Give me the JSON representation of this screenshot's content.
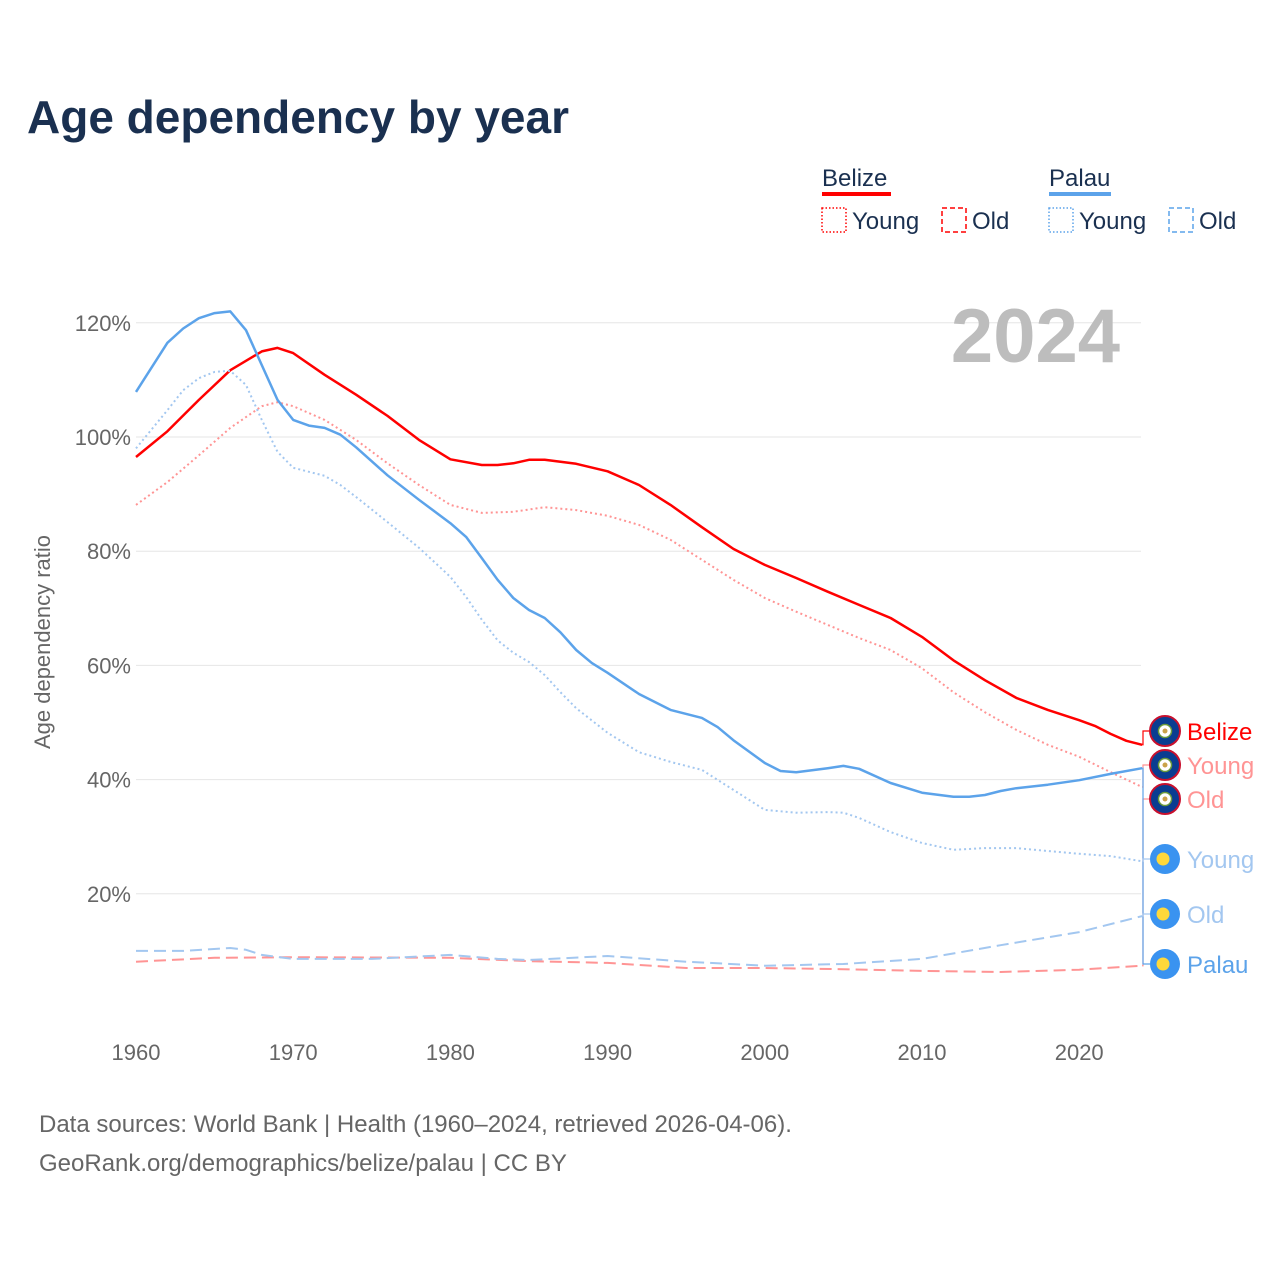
{
  "chart_data": {
    "type": "line",
    "title": "Age dependency by year",
    "ylabel": "Age dependency ratio",
    "xlabel": "",
    "year_display": "2024",
    "xlim": [
      1960,
      2024
    ],
    "ylim": [
      0,
      125
    ],
    "x_ticks": [
      "1960",
      "1970",
      "1980",
      "1990",
      "2000",
      "2010",
      "2020"
    ],
    "y_ticks": [
      "20%",
      "40%",
      "60%",
      "80%",
      "100%",
      "120%"
    ],
    "legend": {
      "groups": [
        {
          "name": "Belize",
          "color": "#ff0000",
          "items": [
            "Young",
            "Old"
          ]
        },
        {
          "name": "Palau",
          "color": "#5ca3ea",
          "items": [
            "Young",
            "Old"
          ]
        }
      ]
    },
    "series": [
      {
        "country": "Belize",
        "name": "Total",
        "label": "Belize",
        "color": "#ff0000",
        "style": "solid",
        "points": [
          [
            1960,
            96.5
          ],
          [
            1962,
            101
          ],
          [
            1964,
            106.5
          ],
          [
            1966,
            111.7
          ],
          [
            1968,
            115
          ],
          [
            1969,
            115.6
          ],
          [
            1970,
            114.7
          ],
          [
            1972,
            110.9
          ],
          [
            1974,
            107.4
          ],
          [
            1976,
            103.7
          ],
          [
            1978,
            99.5
          ],
          [
            1980,
            96.1
          ],
          [
            1982,
            95.1
          ],
          [
            1983,
            95.1
          ],
          [
            1984,
            95.4
          ],
          [
            1985,
            96
          ],
          [
            1986,
            96
          ],
          [
            1988,
            95.3
          ],
          [
            1990,
            94
          ],
          [
            1992,
            91.6
          ],
          [
            1994,
            88.1
          ],
          [
            1996,
            84.2
          ],
          [
            1998,
            80.4
          ],
          [
            2000,
            77.6
          ],
          [
            2002,
            75.3
          ],
          [
            2004,
            72.9
          ],
          [
            2006,
            70.6
          ],
          [
            2008,
            68.3
          ],
          [
            2010,
            65
          ],
          [
            2012,
            60.9
          ],
          [
            2014,
            57.4
          ],
          [
            2016,
            54.3
          ],
          [
            2018,
            52.2
          ],
          [
            2020,
            50.4
          ],
          [
            2021,
            49.4
          ],
          [
            2022,
            48
          ],
          [
            2023,
            46.8
          ],
          [
            2024,
            46.1
          ]
        ]
      },
      {
        "country": "Belize",
        "name": "Young",
        "label": "Young",
        "color": "#ff9494",
        "style": "dotted",
        "points": [
          [
            1960,
            88.1
          ],
          [
            1962,
            92.1
          ],
          [
            1964,
            96.8
          ],
          [
            1966,
            101.6
          ],
          [
            1968,
            105.4
          ],
          [
            1969,
            106.1
          ],
          [
            1970,
            105.4
          ],
          [
            1972,
            103
          ],
          [
            1974,
            99.5
          ],
          [
            1976,
            95.4
          ],
          [
            1978,
            91.6
          ],
          [
            1980,
            88.1
          ],
          [
            1982,
            86.7
          ],
          [
            1984,
            86.9
          ],
          [
            1986,
            87.7
          ],
          [
            1988,
            87.2
          ],
          [
            1990,
            86.2
          ],
          [
            1992,
            84.6
          ],
          [
            1994,
            82
          ],
          [
            1996,
            78.5
          ],
          [
            1998,
            75
          ],
          [
            2000,
            71.8
          ],
          [
            2002,
            69.4
          ],
          [
            2004,
            67.1
          ],
          [
            2006,
            64.8
          ],
          [
            2008,
            62.7
          ],
          [
            2010,
            59.5
          ],
          [
            2012,
            55.3
          ],
          [
            2014,
            51.8
          ],
          [
            2016,
            48.7
          ],
          [
            2018,
            46.1
          ],
          [
            2020,
            44
          ],
          [
            2022,
            41.3
          ],
          [
            2024,
            38.7
          ]
        ]
      },
      {
        "country": "Belize",
        "name": "Old",
        "label": "Old",
        "color": "#ff9494",
        "style": "dashed",
        "points": [
          [
            1960,
            8.1
          ],
          [
            1965,
            8.8
          ],
          [
            1970,
            8.9
          ],
          [
            1980,
            8.8
          ],
          [
            1985,
            8.2
          ],
          [
            1990,
            7.9
          ],
          [
            1995,
            7.0
          ],
          [
            2000,
            7.0
          ],
          [
            2005,
            6.8
          ],
          [
            2010,
            6.5
          ],
          [
            2015,
            6.3
          ],
          [
            2020,
            6.7
          ],
          [
            2024,
            7.4
          ]
        ]
      },
      {
        "country": "Palau",
        "name": "Total",
        "label": "Palau",
        "color": "#5ca3ea",
        "style": "solid",
        "points": [
          [
            1960,
            107.9
          ],
          [
            1962,
            116.5
          ],
          [
            1963,
            119
          ],
          [
            1964,
            120.8
          ],
          [
            1965,
            121.7
          ],
          [
            1966,
            122
          ],
          [
            1967,
            118.7
          ],
          [
            1968,
            112.6
          ],
          [
            1969,
            106.5
          ],
          [
            1970,
            103
          ],
          [
            1971,
            102
          ],
          [
            1972,
            101.6
          ],
          [
            1973,
            100.4
          ],
          [
            1974,
            98.2
          ],
          [
            1976,
            93.3
          ],
          [
            1978,
            89
          ],
          [
            1980,
            84.9
          ],
          [
            1981,
            82.5
          ],
          [
            1982,
            78.8
          ],
          [
            1983,
            75
          ],
          [
            1984,
            71.8
          ],
          [
            1985,
            69.7
          ],
          [
            1986,
            68.3
          ],
          [
            1987,
            65.8
          ],
          [
            1988,
            62.7
          ],
          [
            1989,
            60.4
          ],
          [
            1990,
            58.7
          ],
          [
            1992,
            55
          ],
          [
            1994,
            52.2
          ],
          [
            1996,
            50.8
          ],
          [
            1997,
            49.2
          ],
          [
            1998,
            46.9
          ],
          [
            2000,
            42.9
          ],
          [
            2001,
            41.5
          ],
          [
            2002,
            41.3
          ],
          [
            2004,
            42
          ],
          [
            2005,
            42.4
          ],
          [
            2006,
            41.9
          ],
          [
            2008,
            39.4
          ],
          [
            2010,
            37.7
          ],
          [
            2012,
            37
          ],
          [
            2013,
            37
          ],
          [
            2014,
            37.3
          ],
          [
            2015,
            38
          ],
          [
            2016,
            38.5
          ],
          [
            2018,
            39.1
          ],
          [
            2020,
            39.9
          ],
          [
            2022,
            41
          ],
          [
            2024,
            42
          ]
        ]
      },
      {
        "country": "Palau",
        "name": "Young",
        "label": "Young",
        "color": "#a3c7f0",
        "style": "dotted",
        "points": [
          [
            1960,
            98
          ],
          [
            1962,
            104.7
          ],
          [
            1963,
            108.2
          ],
          [
            1964,
            110.3
          ],
          [
            1965,
            111.4
          ],
          [
            1966,
            111.6
          ],
          [
            1967,
            109.1
          ],
          [
            1968,
            103
          ],
          [
            1969,
            97.4
          ],
          [
            1970,
            94.6
          ],
          [
            1972,
            93.2
          ],
          [
            1973,
            91.6
          ],
          [
            1974,
            89.5
          ],
          [
            1976,
            85.1
          ],
          [
            1978,
            80.6
          ],
          [
            1980,
            75.5
          ],
          [
            1981,
            72
          ],
          [
            1982,
            68
          ],
          [
            1983,
            64.4
          ],
          [
            1984,
            62.2
          ],
          [
            1985,
            60.6
          ],
          [
            1986,
            58.3
          ],
          [
            1987,
            55.3
          ],
          [
            1988,
            52.5
          ],
          [
            1990,
            48.2
          ],
          [
            1992,
            44.8
          ],
          [
            1994,
            43.1
          ],
          [
            1996,
            41.7
          ],
          [
            1998,
            38.2
          ],
          [
            2000,
            34.7
          ],
          [
            2002,
            34.2
          ],
          [
            2004,
            34.3
          ],
          [
            2005,
            34.2
          ],
          [
            2006,
            33.3
          ],
          [
            2008,
            30.8
          ],
          [
            2010,
            28.9
          ],
          [
            2012,
            27.7
          ],
          [
            2014,
            28
          ],
          [
            2016,
            28
          ],
          [
            2018,
            27.5
          ],
          [
            2020,
            27
          ],
          [
            2022,
            26.6
          ],
          [
            2024,
            25.7
          ]
        ]
      },
      {
        "country": "Palau",
        "name": "Old",
        "label": "Old",
        "color": "#a3c7f0",
        "style": "dashed",
        "points": [
          [
            1960,
            10
          ],
          [
            1963,
            10
          ],
          [
            1966,
            10.5
          ],
          [
            1967,
            10.2
          ],
          [
            1968,
            9.3
          ],
          [
            1970,
            8.6
          ],
          [
            1975,
            8.6
          ],
          [
            1980,
            9.3
          ],
          [
            1983,
            8.6
          ],
          [
            1985,
            8.4
          ],
          [
            1990,
            9.1
          ],
          [
            1995,
            8.1
          ],
          [
            2000,
            7.4
          ],
          [
            2005,
            7.7
          ],
          [
            2010,
            8.6
          ],
          [
            2015,
            11
          ],
          [
            2020,
            13.3
          ],
          [
            2024,
            16.1
          ]
        ]
      }
    ]
  },
  "footer": {
    "line1": "Data sources: World Bank | Health (1960–2024, retrieved 2026-04-06).",
    "line2": "GeoRank.org/demographics/belize/palau | CC BY"
  }
}
